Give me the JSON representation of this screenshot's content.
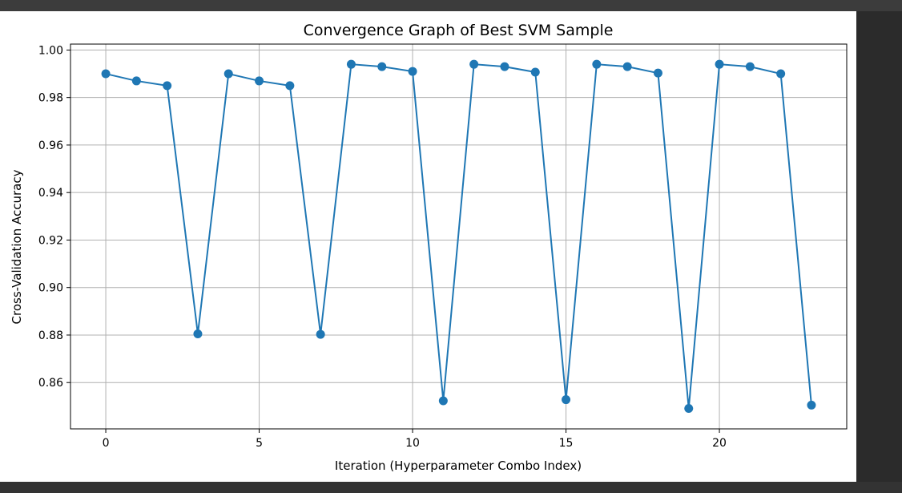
{
  "chart_data": {
    "type": "line",
    "title": "Convergence Graph of Best SVM Sample",
    "xlabel": "Iteration (Hyperparameter Combo Index)",
    "ylabel": "Cross-Validation Accuracy",
    "xlim": [
      -1.15,
      24.15
    ],
    "ylim": [
      0.8405,
      1.0025
    ],
    "xticks": [
      0,
      5,
      10,
      15,
      20
    ],
    "yticks": [
      0.86,
      0.88,
      0.9,
      0.92,
      0.94,
      0.96,
      0.98,
      1.0
    ],
    "xtick_labels": [
      "0",
      "5",
      "10",
      "15",
      "20"
    ],
    "ytick_labels": [
      "0.86",
      "0.88",
      "0.90",
      "0.92",
      "0.94",
      "0.96",
      "0.98",
      "1.00"
    ],
    "grid": true,
    "marker": "o",
    "color": "#1f77b4",
    "x": [
      0,
      1,
      2,
      3,
      4,
      5,
      6,
      7,
      8,
      9,
      10,
      11,
      12,
      13,
      14,
      15,
      16,
      17,
      18,
      19,
      20,
      21,
      22,
      23
    ],
    "values": [
      0.99,
      0.987,
      0.985,
      0.8805,
      0.99,
      0.987,
      0.985,
      0.8803,
      0.994,
      0.993,
      0.991,
      0.8523,
      0.994,
      0.993,
      0.9907,
      0.8528,
      0.994,
      0.993,
      0.9903,
      0.8491,
      0.994,
      0.993,
      0.99,
      0.8505
    ]
  }
}
